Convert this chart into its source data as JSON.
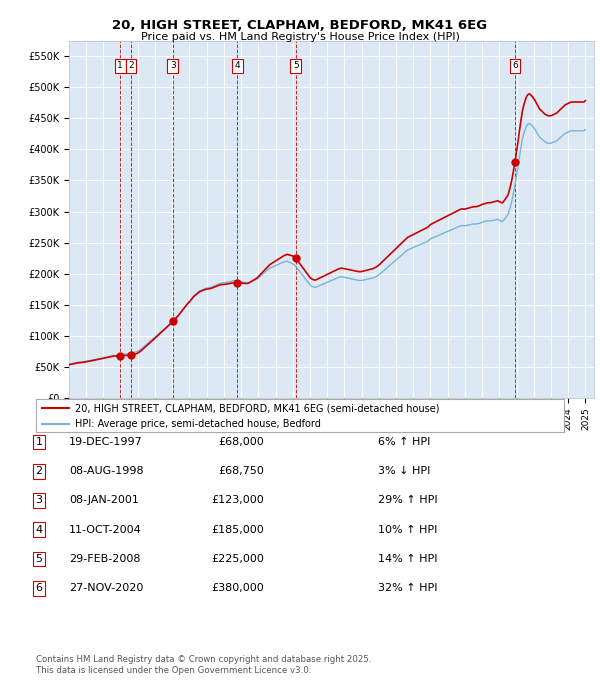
{
  "title": "20, HIGH STREET, CLAPHAM, BEDFORD, MK41 6EG",
  "subtitle": "Price paid vs. HM Land Registry's House Price Index (HPI)",
  "ylabel_ticks": [
    "£0",
    "£50K",
    "£100K",
    "£150K",
    "£200K",
    "£250K",
    "£300K",
    "£350K",
    "£400K",
    "£450K",
    "£500K",
    "£550K"
  ],
  "ytick_values": [
    0,
    50000,
    100000,
    150000,
    200000,
    250000,
    300000,
    350000,
    400000,
    450000,
    500000,
    550000
  ],
  "ylim": [
    0,
    575000
  ],
  "xlim_start": 1995.0,
  "xlim_end": 2025.5,
  "plot_bg": "#dce9f5",
  "transactions": [
    {
      "num": 1,
      "date_label": "19-DEC-1997",
      "year_x": 1997.97,
      "price": 68000,
      "hpi_pct": "6% ↑ HPI"
    },
    {
      "num": 2,
      "date_label": "08-AUG-1998",
      "year_x": 1998.6,
      "price": 68750,
      "hpi_pct": "3% ↓ HPI"
    },
    {
      "num": 3,
      "date_label": "08-JAN-2001",
      "year_x": 2001.03,
      "price": 123000,
      "hpi_pct": "29% ↑ HPI"
    },
    {
      "num": 4,
      "date_label": "11-OCT-2004",
      "year_x": 2004.78,
      "price": 185000,
      "hpi_pct": "10% ↑ HPI"
    },
    {
      "num": 5,
      "date_label": "29-FEB-2008",
      "year_x": 2008.17,
      "price": 225000,
      "hpi_pct": "14% ↑ HPI"
    },
    {
      "num": 6,
      "date_label": "27-NOV-2020",
      "year_x": 2020.91,
      "price": 380000,
      "hpi_pct": "32% ↑ HPI"
    }
  ],
  "hpi_line_color": "#7ab3d4",
  "price_line_color": "#cc0000",
  "dot_color": "#cc0000",
  "legend_label_price": "20, HIGH STREET, CLAPHAM, BEDFORD, MK41 6EG (semi-detached house)",
  "legend_label_hpi": "HPI: Average price, semi-detached house, Bedford",
  "table_rows": [
    [
      "1",
      "19-DEC-1997",
      "£68,000",
      "6% ↑ HPI"
    ],
    [
      "2",
      "08-AUG-1998",
      "£68,750",
      "3% ↓ HPI"
    ],
    [
      "3",
      "08-JAN-2001",
      "£123,000",
      "29% ↑ HPI"
    ],
    [
      "4",
      "11-OCT-2004",
      "£185,000",
      "10% ↑ HPI"
    ],
    [
      "5",
      "29-FEB-2008",
      "£225,000",
      "14% ↑ HPI"
    ],
    [
      "6",
      "27-NOV-2020",
      "£380,000",
      "32% ↑ HPI"
    ]
  ],
  "footer": "Contains HM Land Registry data © Crown copyright and database right 2025.\nThis data is licensed under the Open Government Licence v3.0.",
  "hpi_data_x": [
    1995.0,
    1995.083,
    1995.167,
    1995.25,
    1995.333,
    1995.417,
    1995.5,
    1995.583,
    1995.667,
    1995.75,
    1995.833,
    1995.917,
    1996.0,
    1996.083,
    1996.167,
    1996.25,
    1996.333,
    1996.417,
    1996.5,
    1996.583,
    1996.667,
    1996.75,
    1996.833,
    1996.917,
    1997.0,
    1997.083,
    1997.167,
    1997.25,
    1997.333,
    1997.417,
    1997.5,
    1997.583,
    1997.667,
    1997.75,
    1997.833,
    1997.917,
    1998.0,
    1998.083,
    1998.167,
    1998.25,
    1998.333,
    1998.417,
    1998.5,
    1998.583,
    1998.667,
    1998.75,
    1998.833,
    1998.917,
    1999.0,
    1999.083,
    1999.167,
    1999.25,
    1999.333,
    1999.417,
    1999.5,
    1999.583,
    1999.667,
    1999.75,
    1999.833,
    1999.917,
    2000.0,
    2000.083,
    2000.167,
    2000.25,
    2000.333,
    2000.417,
    2000.5,
    2000.583,
    2000.667,
    2000.75,
    2000.833,
    2000.917,
    2001.0,
    2001.083,
    2001.167,
    2001.25,
    2001.333,
    2001.417,
    2001.5,
    2001.583,
    2001.667,
    2001.75,
    2001.833,
    2001.917,
    2002.0,
    2002.083,
    2002.167,
    2002.25,
    2002.333,
    2002.417,
    2002.5,
    2002.583,
    2002.667,
    2002.75,
    2002.833,
    2002.917,
    2003.0,
    2003.083,
    2003.167,
    2003.25,
    2003.333,
    2003.417,
    2003.5,
    2003.583,
    2003.667,
    2003.75,
    2003.833,
    2003.917,
    2004.0,
    2004.083,
    2004.167,
    2004.25,
    2004.333,
    2004.417,
    2004.5,
    2004.583,
    2004.667,
    2004.75,
    2004.833,
    2004.917,
    2005.0,
    2005.083,
    2005.167,
    2005.25,
    2005.333,
    2005.417,
    2005.5,
    2005.583,
    2005.667,
    2005.75,
    2005.833,
    2005.917,
    2006.0,
    2006.083,
    2006.167,
    2006.25,
    2006.333,
    2006.417,
    2006.5,
    2006.583,
    2006.667,
    2006.75,
    2006.833,
    2006.917,
    2007.0,
    2007.083,
    2007.167,
    2007.25,
    2007.333,
    2007.417,
    2007.5,
    2007.583,
    2007.667,
    2007.75,
    2007.833,
    2007.917,
    2008.0,
    2008.083,
    2008.167,
    2008.25,
    2008.333,
    2008.417,
    2008.5,
    2008.583,
    2008.667,
    2008.75,
    2008.833,
    2008.917,
    2009.0,
    2009.083,
    2009.167,
    2009.25,
    2009.333,
    2009.417,
    2009.5,
    2009.583,
    2009.667,
    2009.75,
    2009.833,
    2009.917,
    2010.0,
    2010.083,
    2010.167,
    2010.25,
    2010.333,
    2010.417,
    2010.5,
    2010.583,
    2010.667,
    2010.75,
    2010.833,
    2010.917,
    2011.0,
    2011.083,
    2011.167,
    2011.25,
    2011.333,
    2011.417,
    2011.5,
    2011.583,
    2011.667,
    2011.75,
    2011.833,
    2011.917,
    2012.0,
    2012.083,
    2012.167,
    2012.25,
    2012.333,
    2012.417,
    2012.5,
    2012.583,
    2012.667,
    2012.75,
    2012.833,
    2012.917,
    2013.0,
    2013.083,
    2013.167,
    2013.25,
    2013.333,
    2013.417,
    2013.5,
    2013.583,
    2013.667,
    2013.75,
    2013.833,
    2013.917,
    2014.0,
    2014.083,
    2014.167,
    2014.25,
    2014.333,
    2014.417,
    2014.5,
    2014.583,
    2014.667,
    2014.75,
    2014.833,
    2014.917,
    2015.0,
    2015.083,
    2015.167,
    2015.25,
    2015.333,
    2015.417,
    2015.5,
    2015.583,
    2015.667,
    2015.75,
    2015.833,
    2015.917,
    2016.0,
    2016.083,
    2016.167,
    2016.25,
    2016.333,
    2016.417,
    2016.5,
    2016.583,
    2016.667,
    2016.75,
    2016.833,
    2016.917,
    2017.0,
    2017.083,
    2017.167,
    2017.25,
    2017.333,
    2017.417,
    2017.5,
    2017.583,
    2017.667,
    2017.75,
    2017.833,
    2017.917,
    2018.0,
    2018.083,
    2018.167,
    2018.25,
    2018.333,
    2018.417,
    2018.5,
    2018.583,
    2018.667,
    2018.75,
    2018.833,
    2018.917,
    2019.0,
    2019.083,
    2019.167,
    2019.25,
    2019.333,
    2019.417,
    2019.5,
    2019.583,
    2019.667,
    2019.75,
    2019.833,
    2019.917,
    2020.0,
    2020.083,
    2020.167,
    2020.25,
    2020.333,
    2020.417,
    2020.5,
    2020.583,
    2020.667,
    2020.75,
    2020.833,
    2020.917,
    2021.0,
    2021.083,
    2021.167,
    2021.25,
    2021.333,
    2021.417,
    2021.5,
    2021.583,
    2021.667,
    2021.75,
    2021.833,
    2021.917,
    2022.0,
    2022.083,
    2022.167,
    2022.25,
    2022.333,
    2022.417,
    2022.5,
    2022.583,
    2022.667,
    2022.75,
    2022.833,
    2022.917,
    2023.0,
    2023.083,
    2023.167,
    2023.25,
    2023.333,
    2023.417,
    2023.5,
    2023.583,
    2023.667,
    2023.75,
    2023.833,
    2023.917,
    2024.0,
    2024.083,
    2024.167,
    2024.25,
    2024.333,
    2024.417,
    2024.5,
    2024.583,
    2024.667,
    2024.75,
    2024.833,
    2024.917,
    2025.0
  ],
  "hpi_data_y": [
    54000,
    54500,
    55000,
    55500,
    56000,
    56500,
    57000,
    57200,
    57400,
    57700,
    58000,
    58400,
    58800,
    59200,
    59700,
    60200,
    60700,
    61200,
    61700,
    62100,
    62500,
    63000,
    63500,
    64000,
    64500,
    65000,
    65500,
    66000,
    66500,
    67000,
    67500,
    68000,
    68200,
    68400,
    68600,
    68800,
    69000,
    69300,
    69700,
    70100,
    70500,
    71000,
    71500,
    72000,
    72500,
    73000,
    73500,
    74000,
    75000,
    76500,
    78000,
    80000,
    82000,
    84000,
    86000,
    88000,
    90000,
    92000,
    94000,
    96000,
    98000,
    100000,
    102000,
    104000,
    106000,
    108000,
    110000,
    112000,
    114000,
    116000,
    118000,
    120000,
    122000,
    124500,
    127000,
    129500,
    132000,
    135000,
    138000,
    141000,
    144000,
    147000,
    150000,
    153000,
    155000,
    158000,
    161000,
    164000,
    166000,
    168000,
    170000,
    172000,
    173000,
    174000,
    175000,
    176000,
    176500,
    177000,
    177500,
    178000,
    179000,
    180000,
    181000,
    182000,
    183000,
    184000,
    184500,
    185000,
    185000,
    185500,
    186000,
    186500,
    187000,
    187500,
    188000,
    188500,
    188500,
    188500,
    188000,
    187500,
    187000,
    186500,
    186000,
    185500,
    185000,
    185000,
    186000,
    187000,
    188000,
    189000,
    190000,
    191000,
    193000,
    195000,
    197000,
    199000,
    201000,
    203000,
    205000,
    207000,
    209000,
    210000,
    211000,
    212000,
    213000,
    214000,
    215000,
    216000,
    217000,
    218000,
    219000,
    219500,
    220000,
    219000,
    218000,
    217000,
    216000,
    214000,
    212000,
    209000,
    206000,
    203000,
    200000,
    197000,
    194000,
    191000,
    188000,
    185000,
    182000,
    180000,
    179000,
    178000,
    178000,
    179000,
    180000,
    181000,
    182000,
    183000,
    184000,
    185000,
    186000,
    187000,
    188000,
    189000,
    190000,
    191000,
    192000,
    193000,
    194000,
    194500,
    195000,
    194500,
    194000,
    193500,
    193000,
    192500,
    192000,
    191500,
    191000,
    190500,
    190000,
    189500,
    189000,
    189000,
    189000,
    189500,
    190000,
    190500,
    191000,
    191500,
    192000,
    192500,
    193000,
    194000,
    195000,
    196500,
    198000,
    200000,
    202000,
    204000,
    206000,
    208000,
    210000,
    212000,
    214000,
    216000,
    218000,
    220000,
    222000,
    224000,
    226000,
    228000,
    230000,
    232000,
    234000,
    236000,
    238000,
    239000,
    240000,
    241000,
    242000,
    243000,
    244000,
    245000,
    246000,
    247000,
    248000,
    249000,
    250000,
    251000,
    252000,
    254000,
    256000,
    257000,
    258000,
    259000,
    260000,
    261000,
    262000,
    263000,
    264000,
    265000,
    266000,
    267000,
    268000,
    269000,
    270000,
    271000,
    272000,
    273000,
    274000,
    275000,
    276000,
    277000,
    277500,
    277000,
    277000,
    277500,
    278000,
    278500,
    279000,
    279500,
    280000,
    280000,
    280000,
    280500,
    281000,
    282000,
    283000,
    283500,
    284000,
    284500,
    285000,
    285000,
    285000,
    285500,
    286000,
    286500,
    287000,
    287500,
    286000,
    285000,
    284000,
    286000,
    289000,
    292000,
    295000,
    302000,
    310000,
    320000,
    332000,
    344000,
    358000,
    372000,
    388000,
    402000,
    416000,
    425000,
    432000,
    438000,
    441000,
    442000,
    440000,
    438000,
    435000,
    432000,
    428000,
    424000,
    420000,
    418000,
    416000,
    414000,
    412000,
    411000,
    410000,
    410000,
    410000,
    411000,
    412000,
    413000,
    414000,
    416000,
    418000,
    420000,
    422000,
    424000,
    426000,
    427000,
    428000,
    429000,
    430000,
    430000,
    430000,
    430000,
    430000,
    430000,
    430000,
    430000,
    430000,
    430000,
    432000
  ]
}
